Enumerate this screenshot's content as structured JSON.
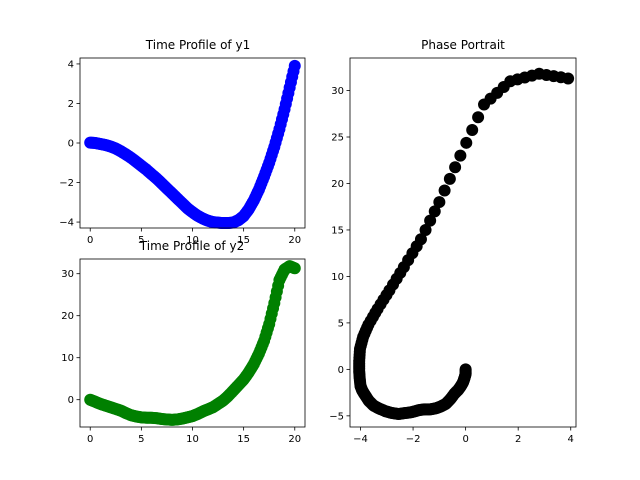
{
  "chart_data": [
    {
      "type": "scatter",
      "title": "Time Profile of y1",
      "xlabel": "",
      "ylabel": "",
      "xlim": [
        -1,
        21
      ],
      "ylim": [
        -4.3,
        4.3
      ],
      "xticks": [
        0,
        5,
        10,
        15,
        20
      ],
      "yticks": [
        -4,
        -2,
        0,
        2,
        4
      ],
      "color": "#0000ff",
      "grid": false,
      "series": [
        {
          "x": [
            0,
            0.5,
            1,
            1.5,
            2,
            2.5,
            3,
            3.5,
            4,
            4.5,
            5,
            5.5,
            6,
            6.5,
            7,
            7.5,
            8,
            8.5,
            9,
            9.5,
            10,
            10.5,
            11,
            11.5,
            12,
            12.5,
            13,
            13.5,
            14,
            14.5,
            15,
            15.5,
            16,
            16.5,
            17,
            17.5,
            18,
            18.5,
            19,
            19.5,
            20
          ],
          "y": [
            0.02,
            0.0,
            -0.05,
            -0.1,
            -0.18,
            -0.28,
            -0.42,
            -0.58,
            -0.75,
            -0.95,
            -1.15,
            -1.35,
            -1.58,
            -1.8,
            -2.05,
            -2.3,
            -2.55,
            -2.8,
            -3.05,
            -3.3,
            -3.5,
            -3.68,
            -3.82,
            -3.93,
            -4.0,
            -4.03,
            -4.05,
            -4.05,
            -4.02,
            -3.9,
            -3.7,
            -3.35,
            -2.9,
            -2.35,
            -1.7,
            -1.0,
            -0.2,
            0.7,
            1.7,
            2.8,
            3.9
          ]
        }
      ]
    },
    {
      "type": "scatter",
      "title": "Time Profile of y2",
      "xlabel": "",
      "ylabel": "",
      "xlim": [
        -1,
        21
      ],
      "ylim": [
        -6.5,
        33.5
      ],
      "xticks": [
        0,
        5,
        10,
        15,
        20
      ],
      "yticks": [
        0,
        10,
        20,
        30
      ],
      "color": "#008000",
      "grid": false,
      "series": [
        {
          "x": [
            0,
            0.5,
            1,
            1.5,
            2,
            2.5,
            3,
            3.5,
            4,
            4.5,
            5,
            5.5,
            6,
            6.5,
            7,
            7.5,
            8,
            8.5,
            9,
            9.5,
            10,
            10.5,
            11,
            11.5,
            12,
            12.5,
            13,
            13.5,
            14,
            14.5,
            15,
            15.5,
            16,
            16.5,
            17,
            17.5,
            18,
            18.5,
            19,
            19.5,
            20
          ],
          "y": [
            0.0,
            -0.5,
            -1.0,
            -1.4,
            -1.8,
            -2.2,
            -2.6,
            -3.2,
            -3.7,
            -4.0,
            -4.2,
            -4.3,
            -4.3,
            -4.4,
            -4.6,
            -4.7,
            -4.8,
            -4.7,
            -4.5,
            -4.2,
            -3.9,
            -3.4,
            -2.8,
            -2.3,
            -1.8,
            -1.0,
            -0.2,
            0.9,
            2.2,
            3.5,
            4.8,
            6.5,
            8.5,
            11.0,
            14.0,
            18.0,
            23.0,
            28.5,
            31.0,
            31.8,
            31.3
          ]
        }
      ]
    },
    {
      "type": "scatter",
      "title": "Phase Portrait",
      "xlabel": "",
      "ylabel": "",
      "xlim": [
        -4.4,
        4.2
      ],
      "ylim": [
        -6.2,
        33.5
      ],
      "xticks": [
        -4,
        -2,
        0,
        2,
        4
      ],
      "yticks": [
        -5,
        0,
        5,
        10,
        15,
        20,
        25,
        30
      ],
      "color": "#000000",
      "grid": false,
      "series": [
        {
          "x": [
            0.0,
            0.0,
            -0.05,
            -0.1,
            -0.18,
            -0.28,
            -0.42,
            -0.58,
            -0.75,
            -0.95,
            -1.15,
            -1.35,
            -1.58,
            -1.8,
            -2.05,
            -2.3,
            -2.55,
            -2.8,
            -3.05,
            -3.3,
            -3.5,
            -3.68,
            -3.82,
            -3.93,
            -4.0,
            -4.03,
            -4.05,
            -4.05,
            -4.02,
            -3.9,
            -3.7,
            -3.35,
            -2.9,
            -2.35,
            -1.7,
            -1.0,
            -0.2,
            0.7,
            1.7,
            2.8,
            3.9
          ],
          "y": [
            0.0,
            -0.5,
            -1.0,
            -1.4,
            -1.8,
            -2.2,
            -2.6,
            -3.2,
            -3.7,
            -4.0,
            -4.2,
            -4.3,
            -4.3,
            -4.4,
            -4.6,
            -4.7,
            -4.8,
            -4.7,
            -4.5,
            -4.2,
            -3.9,
            -3.4,
            -2.8,
            -2.3,
            -1.8,
            -1.0,
            -0.2,
            0.9,
            2.2,
            3.5,
            4.8,
            6.5,
            8.5,
            11.0,
            14.0,
            18.0,
            23.0,
            28.5,
            31.0,
            31.8,
            31.3
          ]
        }
      ]
    }
  ]
}
